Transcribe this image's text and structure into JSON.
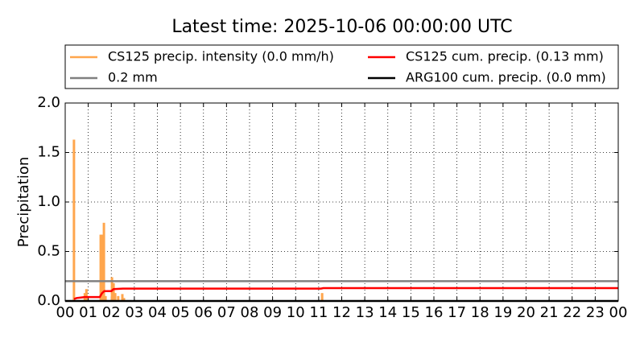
{
  "chart_data": {
    "type": "line",
    "title": "Latest time: 2025-10-06 00:00:00 UTC",
    "y_label": "Precipitation",
    "xlim": [
      0,
      24
    ],
    "ylim": [
      0,
      2.0
    ],
    "grid": true,
    "xticks": [
      {
        "value": 0,
        "label": "00"
      },
      {
        "value": 1,
        "label": "01"
      },
      {
        "value": 2,
        "label": "02"
      },
      {
        "value": 3,
        "label": "03"
      },
      {
        "value": 4,
        "label": "04"
      },
      {
        "value": 5,
        "label": "05"
      },
      {
        "value": 6,
        "label": "06"
      },
      {
        "value": 7,
        "label": "07"
      },
      {
        "value": 8,
        "label": "08"
      },
      {
        "value": 9,
        "label": "09"
      },
      10,
      11,
      12,
      13,
      14,
      15,
      16,
      17,
      18,
      19,
      20,
      21,
      22,
      23,
      {
        "value": 24,
        "label": "00"
      }
    ],
    "yticks": [
      {
        "value": 0,
        "label": "0.0"
      },
      0.5,
      {
        "value": 1,
        "label": "1.0"
      },
      1.5,
      {
        "value": 2,
        "label": "2.0"
      }
    ],
    "series": [
      {
        "name": "CS125 precip. intensity (0.0 mm/h)",
        "type": "bar",
        "color": "#ffa64d",
        "x": [
          0.38,
          0.85,
          0.92,
          1.54,
          1.6,
          1.68,
          1.75,
          2.03,
          2.1,
          2.17,
          2.3,
          2.48,
          2.55,
          11.15
        ],
        "values": [
          1.63,
          0.08,
          0.12,
          0.67,
          0.67,
          0.79,
          0.05,
          0.24,
          0.18,
          0.08,
          0.05,
          0.07,
          0.03,
          0.08
        ]
      },
      {
        "name": "0.2 mm",
        "type": "line",
        "color": "#808080",
        "x": [
          0,
          24
        ],
        "values": [
          0.2,
          0.2
        ]
      },
      {
        "name": "CS125 cum. precip. (0.13 mm)",
        "type": "line",
        "color": "#ff0000",
        "x": [
          0.38,
          0.5,
          0.85,
          1.0,
          1.5,
          1.6,
          1.7,
          2.0,
          2.1,
          2.5,
          11.1,
          11.2,
          24
        ],
        "values": [
          0.02,
          0.03,
          0.04,
          0.04,
          0.04,
          0.08,
          0.1,
          0.1,
          0.12,
          0.125,
          0.125,
          0.13,
          0.13
        ]
      },
      {
        "name": "ARG100 cum. precip. (0.0 mm)",
        "type": "line",
        "color": "#000000",
        "x": [
          0,
          24
        ],
        "values": [
          0,
          0
        ]
      }
    ]
  }
}
